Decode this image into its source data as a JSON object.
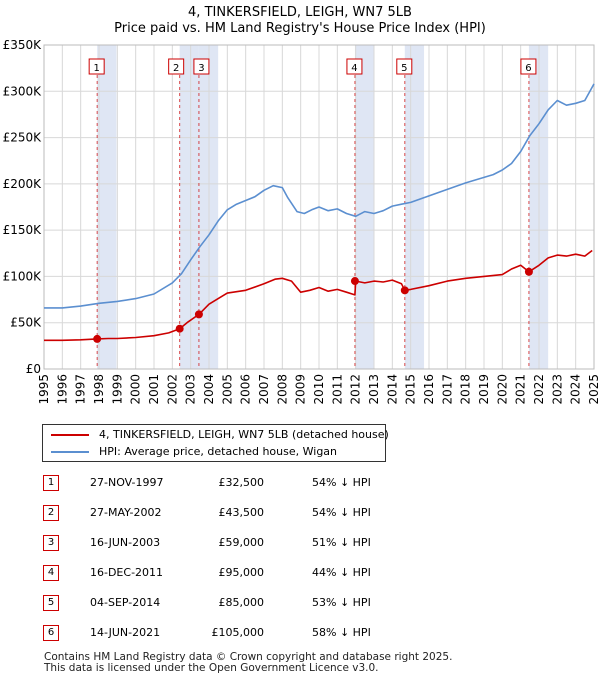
{
  "title": {
    "line1": "4, TINKERSFIELD, LEIGH, WN7 5LB",
    "line2": "Price paid vs. HM Land Registry's House Price Index (HPI)"
  },
  "chart_data": {
    "type": "line",
    "xlim": [
      1995,
      2025
    ],
    "ylim": [
      0,
      350000
    ],
    "yticks": [
      {
        "value": 0,
        "label": "£0"
      },
      {
        "value": 50000,
        "label": "£50K"
      },
      {
        "value": 100000,
        "label": "£100K"
      },
      {
        "value": 150000,
        "label": "£150K"
      },
      {
        "value": 200000,
        "label": "£200K"
      },
      {
        "value": 250000,
        "label": "£250K"
      },
      {
        "value": 300000,
        "label": "£300K"
      },
      {
        "value": 350000,
        "label": "£350K"
      }
    ],
    "xticks": [
      "1995",
      "1996",
      "1997",
      "1998",
      "1999",
      "2000",
      "2001",
      "2002",
      "2003",
      "2004",
      "2005",
      "2006",
      "2007",
      "2008",
      "2009",
      "2010",
      "2011",
      "2012",
      "2013",
      "2014",
      "2015",
      "2016",
      "2017",
      "2018",
      "2019",
      "2020",
      "2021",
      "2022",
      "2023",
      "2024",
      "2025"
    ],
    "grid": true,
    "legend_position": "below",
    "series": [
      {
        "name": "4, TINKERSFIELD, LEIGH, WN7 5LB (detached house)",
        "color": "#cc0000",
        "x": [
          1995.0,
          1996.0,
          1997.0,
          1997.9,
          1998.5,
          1999.0,
          2000.0,
          2001.0,
          2001.8,
          2002.4,
          2002.8,
          2003.45,
          2004.0,
          2004.5,
          2005.0,
          2006.0,
          2007.0,
          2007.6,
          2008.0,
          2008.5,
          2009.0,
          2009.5,
          2010.0,
          2010.5,
          2011.0,
          2011.5,
          2011.96,
          2012.0,
          2012.5,
          2013.0,
          2013.5,
          2014.0,
          2014.5,
          2014.68,
          2015.0,
          2016.0,
          2017.0,
          2018.0,
          2019.0,
          2020.0,
          2020.5,
          2021.0,
          2021.45,
          2022.0,
          2022.5,
          2023.0,
          2023.5,
          2024.0,
          2024.5,
          2024.9
        ],
        "y": [
          31000,
          31000,
          31500,
          32500,
          33000,
          33000,
          34000,
          36000,
          39000,
          43500,
          50000,
          59000,
          70000,
          76000,
          82000,
          85000,
          92000,
          97000,
          98000,
          95000,
          83000,
          85000,
          88000,
          84000,
          86000,
          83000,
          80000,
          95000,
          93000,
          95000,
          94000,
          96000,
          92000,
          85000,
          86000,
          90000,
          95000,
          98000,
          100000,
          102000,
          108000,
          112000,
          105000,
          112000,
          120000,
          123000,
          122000,
          124000,
          122000,
          128000
        ]
      },
      {
        "name": "HPI: Average price, detached house, Wigan",
        "color": "#5b8fd0",
        "x": [
          1995.0,
          1996.0,
          1997.0,
          1998.0,
          1999.0,
          2000.0,
          2001.0,
          2002.0,
          2002.5,
          2003.0,
          2003.5,
          2004.0,
          2004.5,
          2005.0,
          2005.5,
          2006.0,
          2006.5,
          2007.0,
          2007.5,
          2008.0,
          2008.3,
          2008.8,
          2009.2,
          2009.6,
          2010.0,
          2010.5,
          2011.0,
          2011.5,
          2012.0,
          2012.5,
          2013.0,
          2013.5,
          2014.0,
          2014.5,
          2015.0,
          2016.0,
          2017.0,
          2018.0,
          2019.0,
          2019.5,
          2020.0,
          2020.5,
          2021.0,
          2021.5,
          2022.0,
          2022.5,
          2023.0,
          2023.5,
          2024.0,
          2024.5,
          2025.0
        ],
        "y": [
          66000,
          66000,
          68000,
          71000,
          73000,
          76000,
          81000,
          93000,
          103000,
          118000,
          132000,
          145000,
          160000,
          172000,
          178000,
          182000,
          186000,
          193000,
          198000,
          196000,
          185000,
          170000,
          168000,
          172000,
          175000,
          171000,
          173000,
          168000,
          165000,
          170000,
          168000,
          171000,
          176000,
          178000,
          180000,
          187000,
          194000,
          201000,
          207000,
          210000,
          215000,
          222000,
          235000,
          252000,
          265000,
          280000,
          290000,
          285000,
          287000,
          290000,
          308000
        ]
      }
    ],
    "sales": [
      {
        "label": "1",
        "x": 1997.9,
        "y": 32500
      },
      {
        "label": "2",
        "x": 2002.4,
        "y": 43500
      },
      {
        "label": "3",
        "x": 2003.45,
        "y": 59000
      },
      {
        "label": "4",
        "x": 2011.96,
        "y": 95000
      },
      {
        "label": "5",
        "x": 2014.68,
        "y": 85000
      },
      {
        "label": "6",
        "x": 2021.45,
        "y": 105000
      }
    ]
  },
  "legend": {
    "red_label": "4, TINKERSFIELD, LEIGH, WN7 5LB (detached house)",
    "blue_label": "HPI: Average price, detached house, Wigan"
  },
  "sales_table": [
    {
      "num": "1",
      "date": "27-NOV-1997",
      "price": "£32,500",
      "hpi": "54% ↓ HPI"
    },
    {
      "num": "2",
      "date": "27-MAY-2002",
      "price": "£43,500",
      "hpi": "54% ↓ HPI"
    },
    {
      "num": "3",
      "date": "16-JUN-2003",
      "price": "£59,000",
      "hpi": "51% ↓ HPI"
    },
    {
      "num": "4",
      "date": "16-DEC-2011",
      "price": "£95,000",
      "hpi": "44% ↓ HPI"
    },
    {
      "num": "5",
      "date": "04-SEP-2014",
      "price": "£85,000",
      "hpi": "53% ↓ HPI"
    },
    {
      "num": "6",
      "date": "14-JUN-2021",
      "price": "£105,000",
      "hpi": "58% ↓ HPI"
    }
  ],
  "footer": {
    "line1": "Contains HM Land Registry data © Crown copyright and database right 2025.",
    "line2": "This data is licensed under the Open Government Licence v3.0."
  }
}
